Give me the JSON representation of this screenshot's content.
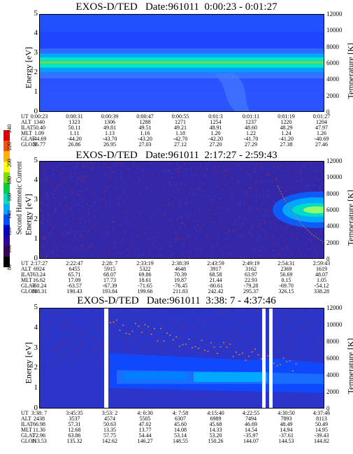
{
  "chart_data": [
    {
      "type": "heatmap",
      "title": "EXOS-D/TED   Date:961011  0:00:23 - 0:01:27",
      "ylabel": "Energy [eV]",
      "ylabel_right": "Temperature [K]",
      "ylim": [
        0,
        5
      ],
      "y2lim": [
        0,
        12000
      ],
      "yticks": [
        "0",
        "1",
        "2",
        "3",
        "4",
        "5"
      ],
      "y2ticks": [
        "0",
        "2000",
        "4000",
        "6000",
        "8000",
        "10000",
        "12000"
      ],
      "ephemeris_labels": [
        "UT",
        "ALT",
        "ILAT",
        "MLT",
        "GLAT",
        "GLON"
      ],
      "ephemeris": [
        [
          "0:00:23",
          "1340",
          "50.40",
          "1.09",
          "-44.69",
          "26.77"
        ],
        [
          "0:00:31",
          "1323",
          "50.11",
          "1.11",
          "-44.20",
          "26.86"
        ],
        [
          "0:00:39",
          "1306",
          "49.81",
          "1.13",
          "-43.70",
          "26.95"
        ],
        [
          "0:00:47",
          "1288",
          "49.51",
          "1.16",
          "-43.20",
          "27.03"
        ],
        [
          "0:00:55",
          "1271",
          "49.21",
          "1.18",
          "-42.70",
          "27.12"
        ],
        [
          "0:01:3",
          "1254",
          "48.91",
          "1.20",
          "-42.20",
          "27.20"
        ],
        [
          "0:01:11",
          "1237",
          "48.60",
          "1.22",
          "-41.70",
          "27.29"
        ],
        [
          "0:01:19",
          "1220",
          "48.29",
          "1.24",
          "-41.20",
          "27.38"
        ],
        [
          "0:01:27",
          "1204",
          "47.97",
          "1.26",
          "-40.69",
          "27.46"
        ]
      ]
    },
    {
      "type": "heatmap",
      "title": "EXOS-D/TED   Date:961011  2:17:27 - 2:59:43",
      "ylabel": "Energy [eV]",
      "ylabel_right": "Temperature [K]",
      "ylim": [
        0,
        5
      ],
      "y2lim": [
        0,
        12000
      ],
      "yticks": [
        "0",
        "1",
        "2",
        "3",
        "4",
        "5"
      ],
      "y2ticks": [
        "0",
        "2000",
        "4000",
        "6000",
        "8000",
        "10000",
        "12000"
      ],
      "ephemeris_labels": [
        "UT",
        "ALT",
        "ILAT",
        "MLT",
        "GLAT",
        "GLON"
      ],
      "ephemeris": [
        [
          "2:17:27",
          "6924",
          "63.24",
          "16.62",
          "-60.24",
          "188.31"
        ],
        [
          "2:22:47",
          "6455",
          "65.71",
          "17.09",
          "-63.57",
          "190.43"
        ],
        [
          "2:28: 7",
          "5915",
          "68.07",
          "17.73",
          "-67.39",
          "193.84"
        ],
        [
          "2:33:19",
          "5322",
          "69.86",
          "18.61",
          "-71.65",
          "199.66"
        ],
        [
          "2:38:39",
          "4648",
          "70.39",
          "19.87",
          "-76.45",
          "211.83"
        ],
        [
          "2:43:59",
          "3917",
          "68.58",
          "21.44",
          "-80.61",
          "242.42"
        ],
        [
          "2:49:19",
          "3162",
          "63.97",
          "22.93",
          "-79.28",
          "295.37"
        ],
        [
          "2:54:31",
          "2369",
          "56.69",
          "0.15",
          "-69.70",
          "326.15"
        ],
        [
          "2:59:43",
          "1619",
          "48.07",
          "1.05",
          "-54.12",
          "338.28"
        ]
      ],
      "colorbar": {
        "label": "Second Harmonic Current",
        "ticks": [
          "80",
          "100",
          "120",
          "140",
          "160",
          "180",
          "200",
          "220",
          "240"
        ],
        "colors": [
          "#000000",
          "#3a005a",
          "#30009a",
          "#0000d8",
          "#0050ff",
          "#00a8ff",
          "#00e0c0",
          "#00d040",
          "#80e000",
          "#ffff00",
          "#ffb000",
          "#ff5000",
          "#e00000"
        ]
      }
    },
    {
      "type": "heatmap",
      "title": "EXOS-D/TED   Date:961011  3:38: 7 - 4:37:46",
      "ylabel": "Energy [eV]",
      "ylabel_right": "Temperature [K]",
      "ylim": [
        0,
        5
      ],
      "y2lim": [
        0,
        12000
      ],
      "yticks": [
        "0",
        "1",
        "2",
        "3",
        "4",
        "5"
      ],
      "y2ticks": [
        "0",
        "2000",
        "4000",
        "6000",
        "8000",
        "10000",
        "12000"
      ],
      "ephemeris_labels": [
        "UT",
        "ALT",
        "ILAT",
        "MLT",
        "GLAT",
        "GLON"
      ],
      "ephemeris": [
        [
          "3:38: 7",
          "2438",
          "66.98",
          "11.30",
          "72.96",
          "113.53"
        ],
        [
          "3:45:35",
          "3537",
          "57.31",
          "12.68",
          "63.86",
          "135.32"
        ],
        [
          "3:53: 2",
          "4574",
          "50.63",
          "13.35",
          "57.75",
          "142.62"
        ],
        [
          "4: 0:30",
          "5505",
          "47.02",
          "13.77",
          "54.44",
          "146.27"
        ],
        [
          "4: 7:58",
          "6307",
          "45.60",
          "14.08",
          "53.14",
          "148.55"
        ],
        [
          "4:15:40",
          "6989",
          "45.68",
          "14.33",
          "53.20",
          "150.26"
        ],
        [
          "4:22:55",
          "7494",
          "46.69",
          "14.54",
          "-35.97",
          "144.07"
        ],
        [
          "4:30:50",
          "7893",
          "48.49",
          "14.94",
          "-37.61",
          "144.53"
        ],
        [
          "4:37:46",
          "8113",
          "50.49",
          "14.95",
          "-39.43",
          "144.82"
        ]
      ]
    }
  ]
}
